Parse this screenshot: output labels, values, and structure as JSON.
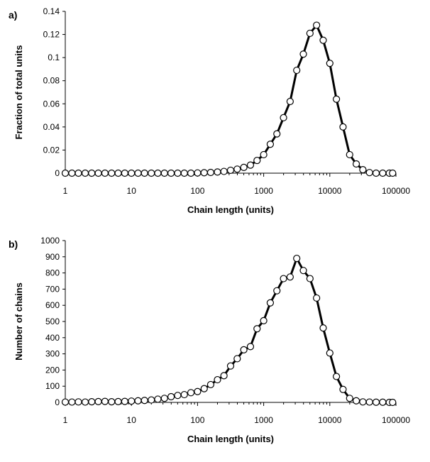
{
  "colors": {
    "line": "#000000",
    "marker_stroke": "#000000",
    "marker_fill": "#ffffff",
    "axis": "#000000"
  },
  "chart_data": [
    {
      "type": "line",
      "panel_label": "a)",
      "title": "",
      "xlabel": "Chain length (units)",
      "ylabel": "Fraction of total units",
      "x_scale": "log",
      "xlim": [
        1,
        100000
      ],
      "ylim": [
        0,
        0.14
      ],
      "x_ticks": [
        1,
        10,
        100,
        1000,
        10000,
        100000
      ],
      "x_tick_labels": [
        "1",
        "10",
        "100",
        "1000",
        "10000",
        "100000"
      ],
      "y_ticks": [
        0,
        0.02,
        0.04,
        0.06,
        0.08,
        0.1,
        0.12,
        0.14
      ],
      "y_tick_labels": [
        "0",
        "0.02",
        "0.04",
        "0.06",
        "0.08",
        "0.1",
        "0.12",
        "0.14"
      ],
      "grid": false,
      "legend": "none",
      "marker": "open-circle",
      "series": [
        {
          "x": [
            1,
            1.26,
            1.58,
            2,
            2.51,
            3.16,
            3.98,
            5.01,
            6.31,
            7.94,
            10,
            12.6,
            15.8,
            20,
            25.1,
            31.6,
            39.8,
            50.1,
            63.1,
            79.4,
            100,
            126,
            158,
            200,
            251,
            316,
            398,
            501,
            631,
            794,
            1000,
            1259,
            1585,
            1995,
            2512,
            3162,
            3981,
            5012,
            6310,
            7943,
            10000,
            12589,
            15849,
            19953,
            25119,
            31623,
            39811,
            50119,
            63096,
            79433,
            89125
          ],
          "y": [
            0,
            0,
            0,
            0,
            0,
            0,
            0,
            0,
            0,
            0,
            0,
            0,
            0,
            0,
            0,
            0,
            0,
            0,
            0,
            0,
            0.0002,
            0.0004,
            0.0006,
            0.001,
            0.0015,
            0.0025,
            0.0035,
            0.005,
            0.007,
            0.011,
            0.016,
            0.025,
            0.034,
            0.048,
            0.062,
            0.089,
            0.103,
            0.121,
            0.128,
            0.115,
            0.095,
            0.064,
            0.04,
            0.016,
            0.008,
            0.003,
            0.0005,
            0,
            0,
            0,
            0
          ]
        }
      ]
    },
    {
      "type": "line",
      "panel_label": "b)",
      "title": "",
      "xlabel": "Chain length (units)",
      "ylabel": "Number of chains",
      "x_scale": "log",
      "xlim": [
        1,
        100000
      ],
      "ylim": [
        0,
        1000
      ],
      "x_ticks": [
        1,
        10,
        100,
        1000,
        10000,
        100000
      ],
      "x_tick_labels": [
        "1",
        "10",
        "100",
        "1000",
        "10000",
        "100000"
      ],
      "y_ticks": [
        0,
        100,
        200,
        300,
        400,
        500,
        600,
        700,
        800,
        900,
        1000
      ],
      "y_tick_labels": [
        "0",
        "100",
        "200",
        "300",
        "400",
        "500",
        "600",
        "700",
        "800",
        "900",
        "1000"
      ],
      "grid": false,
      "legend": "none",
      "marker": "open-circle",
      "series": [
        {
          "x": [
            1,
            1.26,
            1.58,
            2,
            2.51,
            3.16,
            3.98,
            5.01,
            6.31,
            7.94,
            10,
            12.6,
            15.8,
            20,
            25.1,
            31.6,
            39.8,
            50.1,
            63.1,
            79.4,
            100,
            126,
            158,
            200,
            251,
            316,
            398,
            501,
            631,
            794,
            1000,
            1259,
            1585,
            1995,
            2512,
            3162,
            3981,
            5012,
            6310,
            7943,
            10000,
            12589,
            15849,
            19953,
            25119,
            31623,
            39811,
            50119,
            63096,
            79433,
            89125
          ],
          "y": [
            2,
            2,
            3,
            2,
            4,
            5,
            6,
            4,
            5,
            6,
            8,
            10,
            12,
            15,
            20,
            25,
            35,
            43,
            48,
            60,
            67,
            85,
            110,
            140,
            165,
            225,
            270,
            325,
            345,
            455,
            505,
            615,
            690,
            765,
            775,
            890,
            815,
            765,
            645,
            460,
            305,
            160,
            80,
            25,
            10,
            3,
            2,
            1,
            1,
            0,
            0
          ]
        }
      ]
    }
  ]
}
